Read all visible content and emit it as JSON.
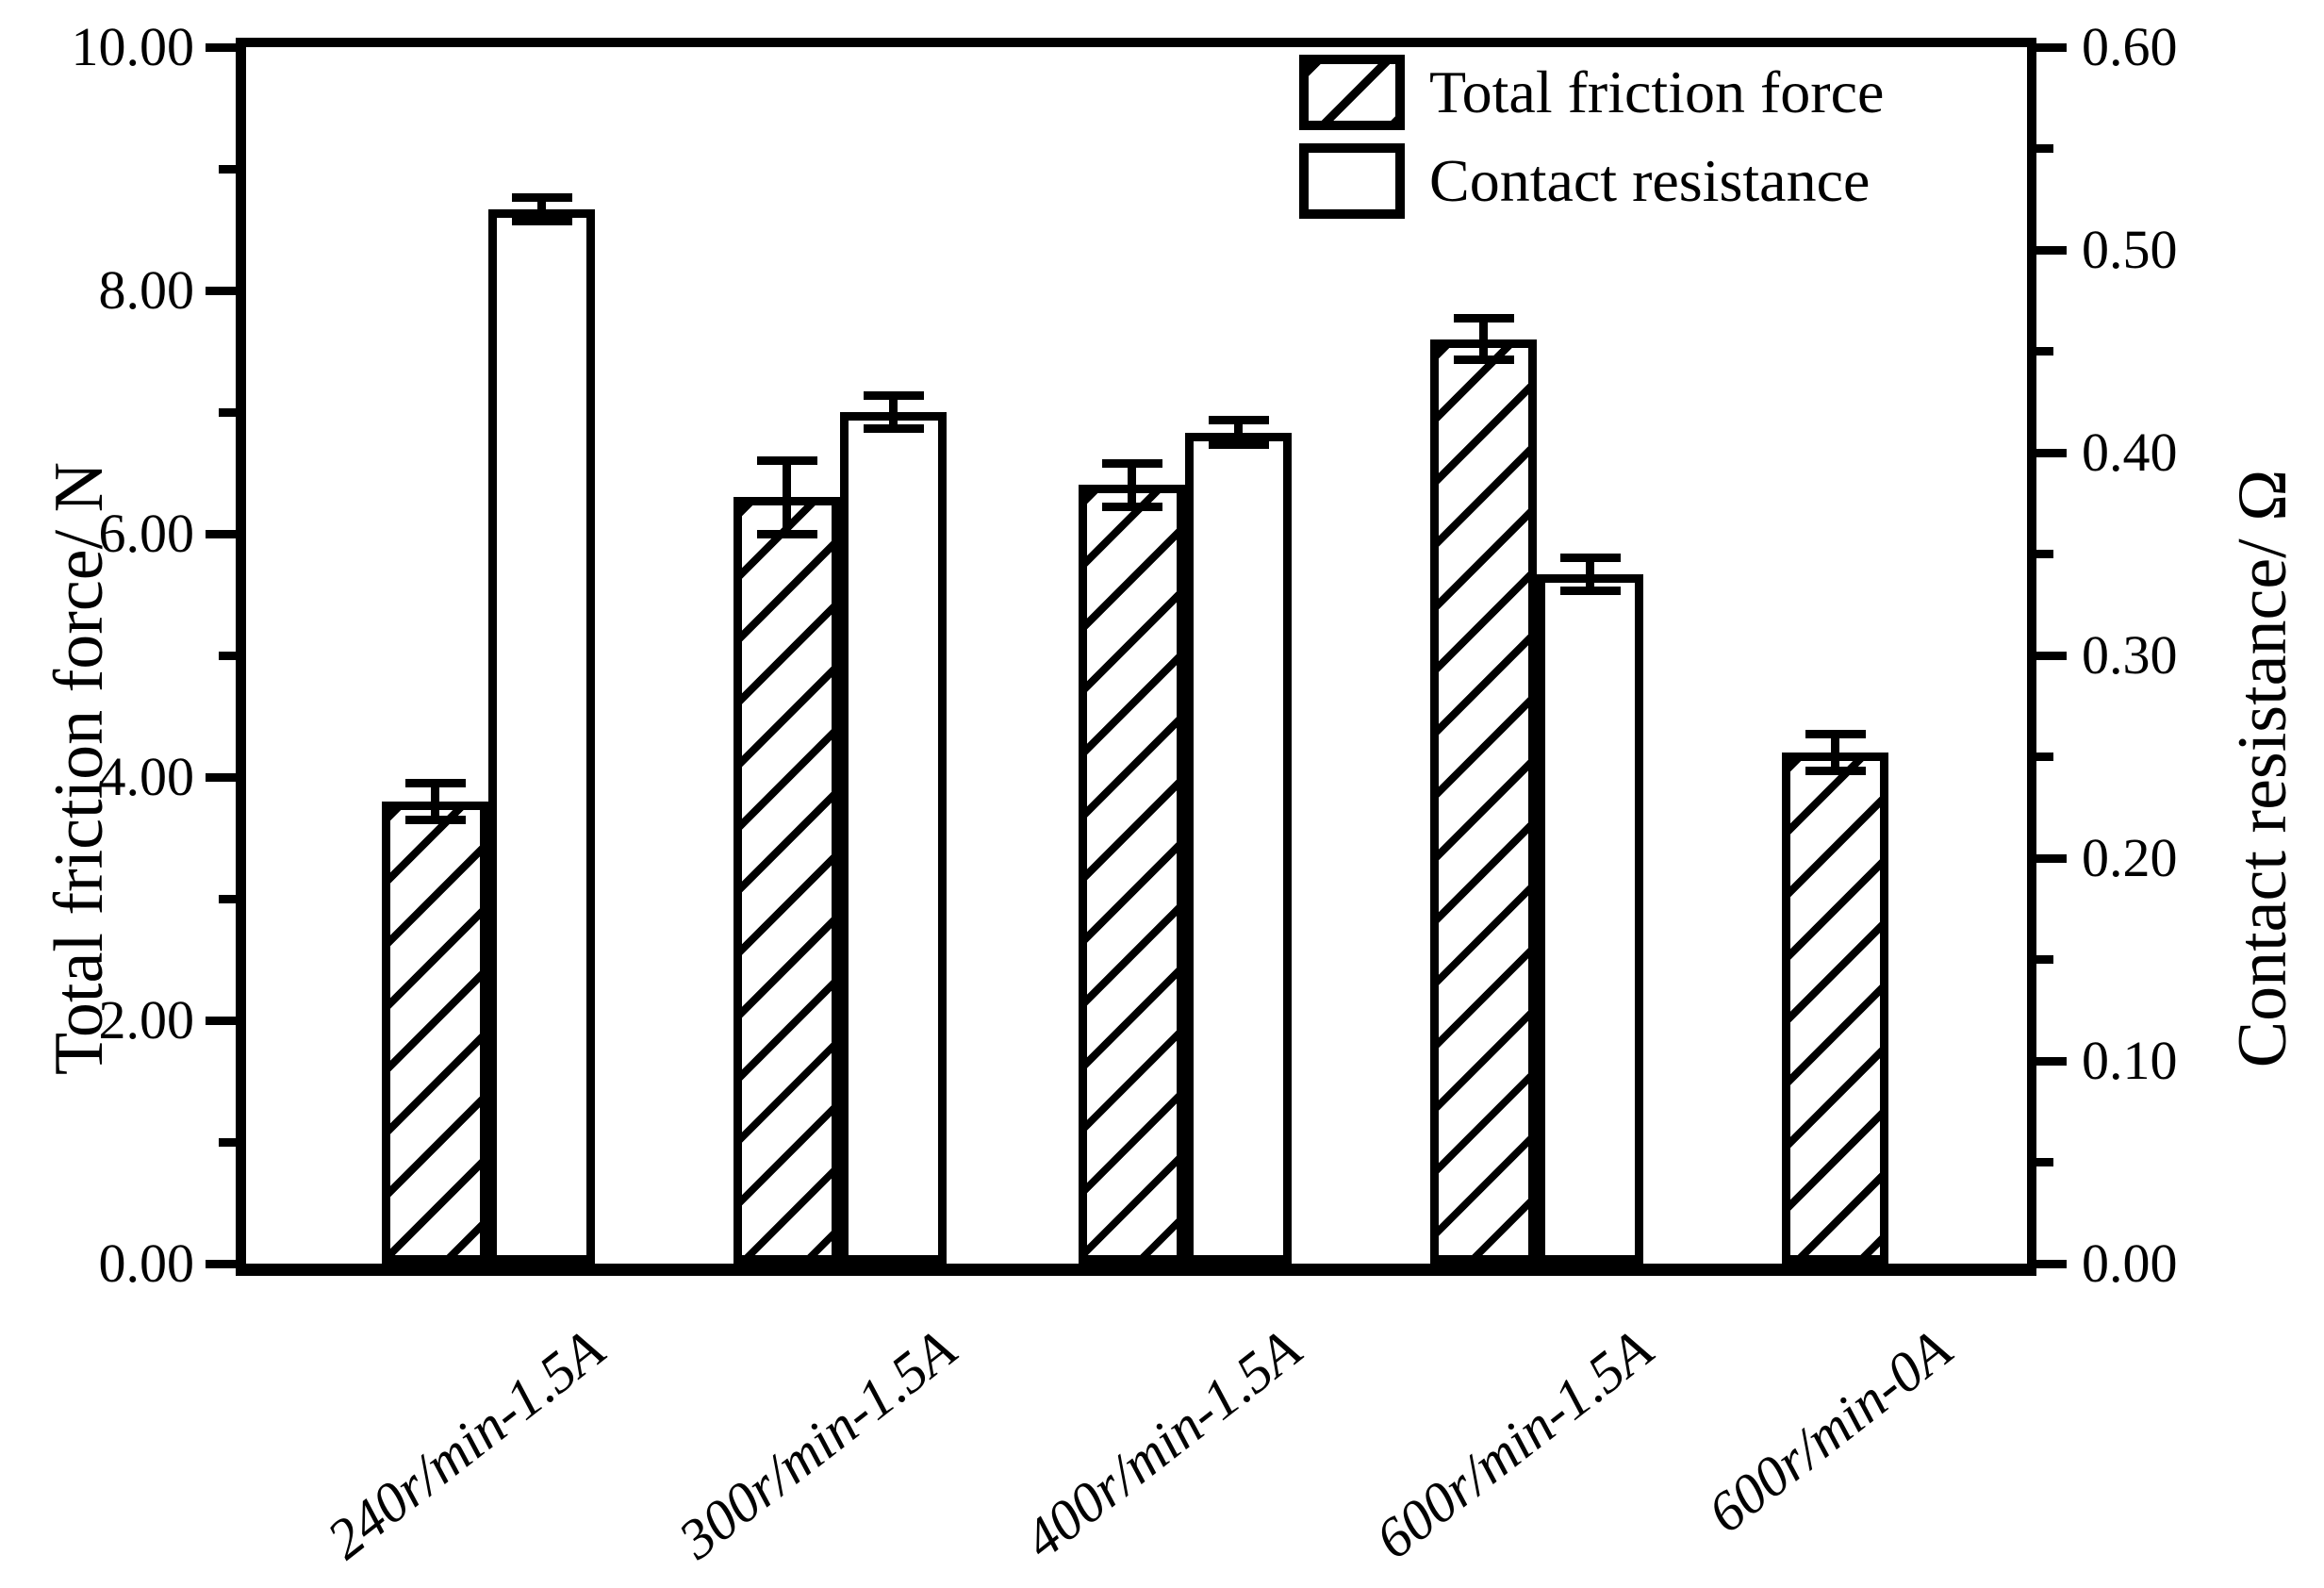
{
  "figure": {
    "background_color": "#ffffff",
    "ink_color": "#000000"
  },
  "chart_data": {
    "type": "bar",
    "categories": [
      "240r/min-1.5A",
      "300r/min-1.5A",
      "400r/min-1.5A",
      "600r/min-1.5A",
      "600r/min-0A"
    ],
    "series": [
      {
        "name": "Total friction force",
        "axis": "left",
        "style": "hatched",
        "unit": "N",
        "values": [
          3.8,
          6.3,
          6.4,
          7.6,
          4.2
        ],
        "errors": [
          0.15,
          0.3,
          0.18,
          0.17,
          0.15
        ]
      },
      {
        "name": "Contact resistance",
        "axis": "right",
        "style": "open",
        "unit": "Ω",
        "values": [
          0.52,
          0.42,
          0.41,
          0.34,
          null
        ],
        "errors": [
          0.006,
          0.008,
          0.006,
          0.008,
          null
        ]
      }
    ],
    "left_axis": {
      "label": "Total friction force/ N",
      "min": 0,
      "max": 10,
      "major_tick_labels": [
        "0.00",
        "2.00",
        "4.00",
        "6.00",
        "8.00",
        "10.00"
      ],
      "minor_step": 1
    },
    "right_axis": {
      "label": "Contact resistance/ Ω",
      "min": 0,
      "max": 0.6,
      "major_tick_labels": [
        "0.00",
        "0.10",
        "0.20",
        "0.30",
        "0.40",
        "0.50",
        "0.60"
      ],
      "minor_step": 0.05
    },
    "legend": {
      "position": "top-right-inside",
      "entries": [
        "Total friction force",
        "Contact resistance"
      ]
    },
    "grid": "off",
    "tick_direction": "out"
  }
}
